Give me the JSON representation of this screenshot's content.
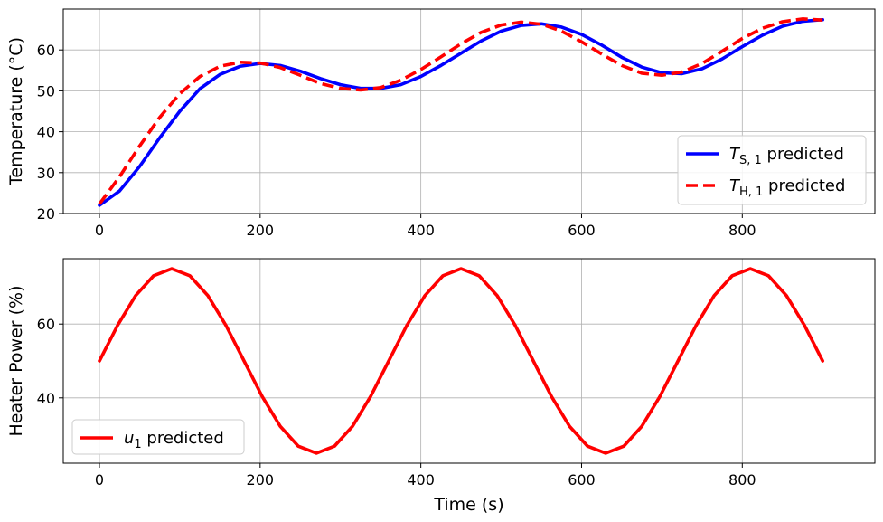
{
  "chart_data": [
    {
      "type": "line",
      "title": "",
      "xlabel": "",
      "ylabel": "Temperature (°C)",
      "xlim": [
        -45,
        965
      ],
      "ylim": [
        20,
        70
      ],
      "xticks": [
        0,
        200,
        400,
        600,
        800
      ],
      "yticks": [
        20,
        30,
        40,
        50,
        60
      ],
      "grid": true,
      "legend": "lower-right",
      "series": [
        {
          "name": "T_{S,1} predicted",
          "legend_main": "T",
          "legend_sub": "S, 1",
          "legend_rest": " predicted",
          "color": "#0000ff",
          "style": "solid",
          "x": [
            0,
            25,
            50,
            75,
            100,
            125,
            150,
            175,
            200,
            225,
            250,
            275,
            300,
            325,
            350,
            375,
            400,
            425,
            450,
            475,
            500,
            525,
            550,
            575,
            600,
            625,
            650,
            675,
            700,
            725,
            750,
            775,
            800,
            825,
            850,
            875,
            900
          ],
          "y": [
            22,
            25.5,
            31.5,
            38.5,
            45,
            50.5,
            54,
            56,
            56.7,
            56.2,
            54.8,
            53,
            51.5,
            50.6,
            50.6,
            51.5,
            53.5,
            56.2,
            59.2,
            62.2,
            64.6,
            66,
            66.4,
            65.6,
            63.8,
            61.2,
            58.2,
            55.8,
            54.4,
            54.2,
            55.4,
            57.8,
            60.8,
            63.6,
            65.8,
            67,
            67.4
          ]
        },
        {
          "name": "T_{H,1} predicted",
          "legend_main": "T",
          "legend_sub": "H, 1",
          "legend_rest": " predicted",
          "color": "#ff0000",
          "style": "dashed",
          "x": [
            0,
            25,
            50,
            75,
            100,
            125,
            150,
            175,
            200,
            225,
            250,
            275,
            300,
            325,
            350,
            375,
            400,
            425,
            450,
            475,
            500,
            525,
            550,
            575,
            600,
            625,
            650,
            675,
            700,
            725,
            750,
            775,
            800,
            825,
            850,
            875,
            900
          ],
          "y": [
            22.3,
            29,
            36.5,
            43.5,
            49.3,
            53.5,
            56,
            57,
            56.8,
            55.7,
            53.8,
            51.8,
            50.6,
            50.2,
            50.8,
            52.6,
            55.2,
            58.3,
            61.5,
            64.3,
            66.1,
            66.8,
            66.3,
            64.6,
            62,
            59,
            56.2,
            54.3,
            53.8,
            54.6,
            56.7,
            59.7,
            62.8,
            65.3,
            66.9,
            67.6,
            67.3
          ]
        }
      ]
    },
    {
      "type": "line",
      "title": "",
      "xlabel": "Time (s)",
      "ylabel": "Heater Power (%)",
      "xlim": [
        -45,
        965
      ],
      "ylim": [
        22.3,
        77.7
      ],
      "xticks": [
        0,
        200,
        400,
        600,
        800
      ],
      "yticks": [
        40,
        60
      ],
      "grid": true,
      "legend": "lower-left",
      "series": [
        {
          "name": "u_1 predicted",
          "legend_main": "u",
          "legend_sub": "1",
          "legend_rest": " predicted",
          "color": "#ff0000",
          "style": "solid",
          "x": [
            0,
            22.5,
            45,
            67.5,
            90,
            112.5,
            135,
            157.5,
            180,
            202.5,
            225,
            247.5,
            270,
            292.5,
            315,
            337.5,
            360,
            382.5,
            405,
            427.5,
            450,
            472.5,
            495,
            517.5,
            540,
            562.5,
            585,
            607.5,
            630,
            652.5,
            675,
            697.5,
            720,
            742.5,
            765,
            787.5,
            810,
            832.5,
            855,
            877.5,
            900
          ],
          "y": [
            50,
            59.6,
            67.7,
            73.1,
            75,
            73.1,
            67.7,
            59.6,
            50,
            40.4,
            32.3,
            26.9,
            25,
            26.9,
            32.3,
            40.4,
            50,
            59.6,
            67.7,
            73.1,
            75,
            73.1,
            67.7,
            59.6,
            50,
            40.4,
            32.3,
            26.9,
            25,
            26.9,
            32.3,
            40.4,
            50,
            59.6,
            67.7,
            73.1,
            75,
            73.1,
            67.7,
            59.6,
            50
          ]
        }
      ]
    }
  ]
}
